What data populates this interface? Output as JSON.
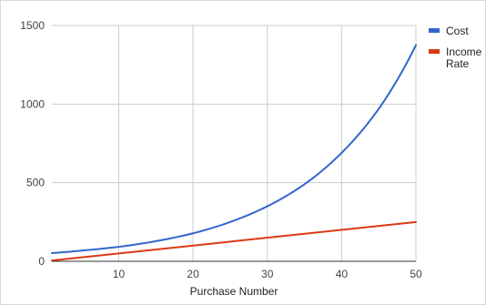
{
  "chart_data": {
    "type": "line",
    "title": "",
    "xlabel": "Purchase Number",
    "ylabel": "",
    "xlim": [
      1,
      50
    ],
    "ylim": [
      0,
      1500
    ],
    "x_ticks": [
      10,
      20,
      30,
      40,
      50
    ],
    "y_ticks": [
      0,
      500,
      1000,
      1500
    ],
    "grid": true,
    "legend_position": "right",
    "series": [
      {
        "name": "Cost",
        "color": "#3366cc",
        "x": [
          1,
          5,
          10,
          15,
          20,
          25,
          30,
          35,
          40,
          45,
          50
        ],
        "values": [
          52,
          68,
          92,
          128,
          178,
          250,
          350,
          490,
          690,
          970,
          1375
        ]
      },
      {
        "name": "Income Rate",
        "legend_lines": [
          "Income",
          "Rate"
        ],
        "color": "#dc3912",
        "x": [
          1,
          50
        ],
        "values": [
          5,
          250
        ]
      }
    ]
  }
}
